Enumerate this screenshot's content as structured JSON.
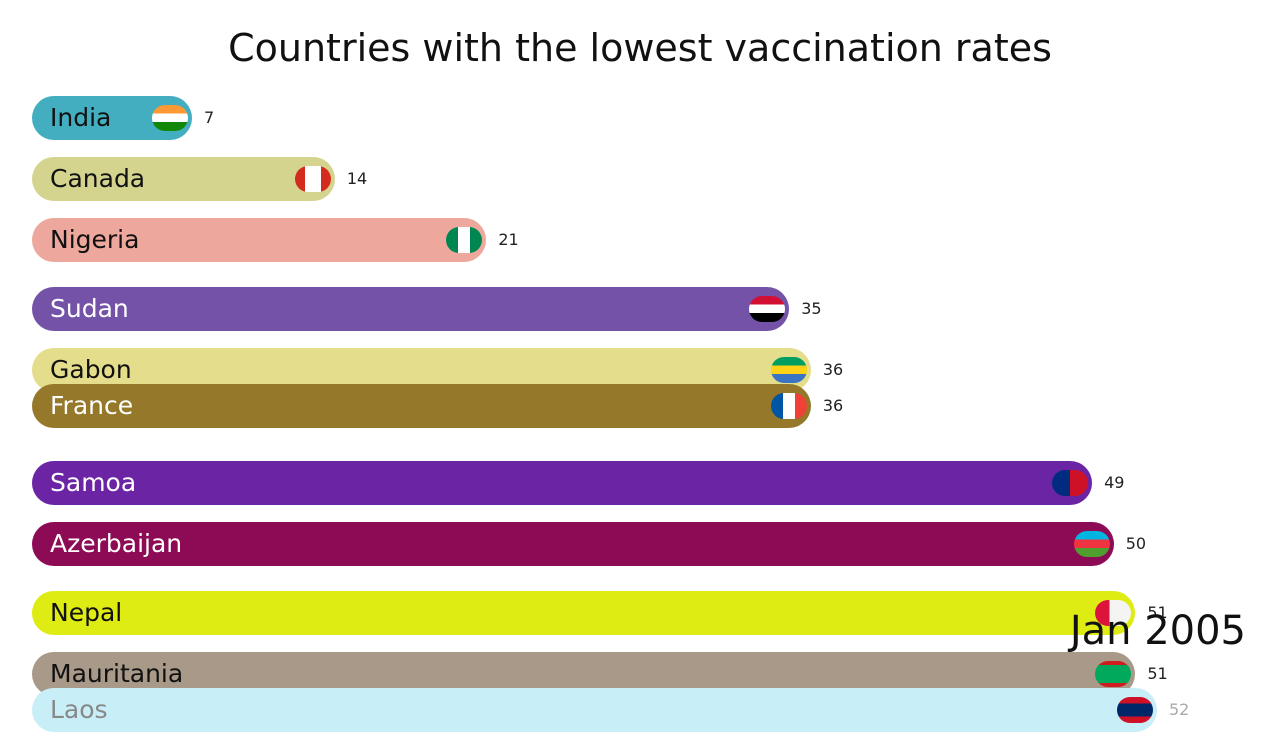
{
  "chart_data": {
    "type": "bar",
    "title": "Countries with the lowest vaccination rates",
    "period": "Jan 2005",
    "categories": [
      "India",
      "Canada",
      "Nigeria",
      "Sudan",
      "Gabon",
      "France",
      "Samoa",
      "Azerbaijan",
      "Nepal",
      "Mauritania",
      "Laos"
    ],
    "values": [
      7,
      14,
      21,
      35,
      36,
      36,
      49,
      50,
      51,
      51,
      52
    ],
    "colors": [
      "#43aec0",
      "#d4d48f",
      "#eda79c",
      "#7352a8",
      "#e4dd8b",
      "#96782a",
      "#6a24a4",
      "#8d0a55",
      "#dfec14",
      "#a89989",
      "#c8eef7"
    ],
    "label_colors": [
      "#111111",
      "#111111",
      "#111111",
      "#ffffff",
      "#111111",
      "#ffffff",
      "#ffffff",
      "#ffffff",
      "#111111",
      "#111111",
      "#888888"
    ],
    "flag_icons": [
      "flag-india-icon",
      "flag-canada-icon",
      "flag-nigeria-icon",
      "flag-sudan-icon",
      "flag-gabon-icon",
      "flag-france-icon",
      "flag-samoa-icon",
      "flag-azerbaijan-icon",
      "flag-nepal-icon",
      "flag-mauritania-icon",
      "flag-laos-icon"
    ],
    "xlim": [
      0,
      52
    ]
  }
}
